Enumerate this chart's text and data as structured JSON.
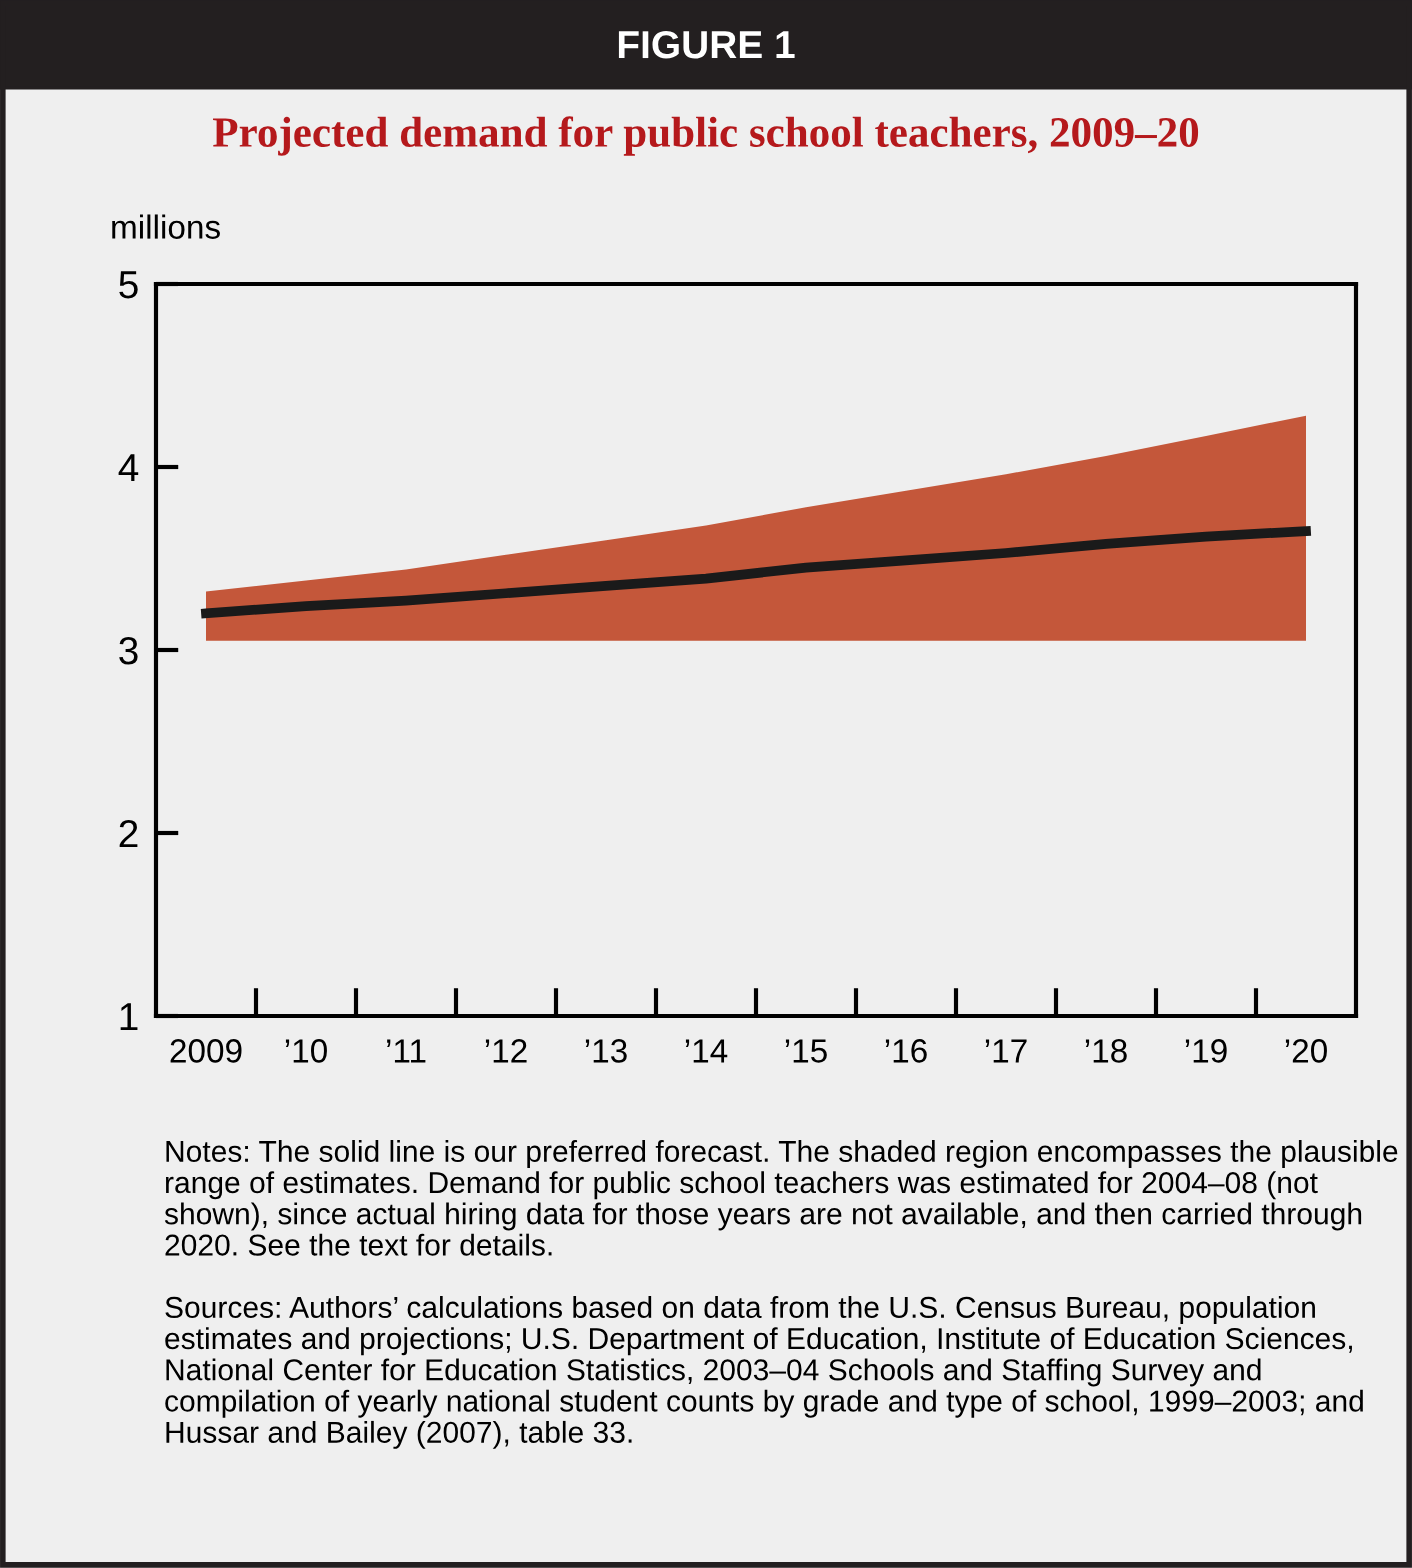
{
  "chart_data": {
    "type": "line",
    "title": "FIGURE 1",
    "subtitle": "Projected demand for public school teachers, 2009–20",
    "ylabel": "millions",
    "categories": [
      "2009",
      "’10",
      "’11",
      "’12",
      "’13",
      "’14",
      "’15",
      "’16",
      "’17",
      "’18",
      "’19",
      "’20"
    ],
    "series": [
      {
        "color": "#1a1a1a",
        "values": [
          3.2,
          3.24,
          3.27,
          3.31,
          3.35,
          3.39,
          3.45,
          3.49,
          3.53,
          3.58,
          3.62,
          3.65
        ],
        "lower": [
          3.05,
          3.05,
          3.05,
          3.05,
          3.05,
          3.05,
          3.05,
          3.05,
          3.05,
          3.05,
          3.05,
          3.05
        ],
        "upper": [
          3.32,
          3.38,
          3.44,
          3.52,
          3.6,
          3.68,
          3.78,
          3.87,
          3.96,
          4.06,
          4.17,
          4.28
        ]
      }
    ],
    "ylim": [
      1,
      5
    ],
    "yticks": [
      1,
      2,
      3,
      4,
      5
    ],
    "grid": false,
    "legend": false,
    "marker": "none",
    "line_style": "solid",
    "annotations": [
      "Notes: The solid line is our preferred forecast. The shaded region encompasses the plausible range of estimates. Demand for public school teachers was estimated for 2004–08 (not shown), since actual hiring data for those years are not available, and then carried through 2020. See the text for details.",
      "Sources: Authors’ calculations based on data from the U.S. Census Bureau, population estimates and projections; U.S. Department of Education, Institute of Education Sciences, National Center for Education Statistics, 2003–04 Schools and Staffing Survey and compilation of yearly national student counts by grade and type of school, 1999–2003; and Hussar and Bailey (2007), table 33."
    ]
  }
}
